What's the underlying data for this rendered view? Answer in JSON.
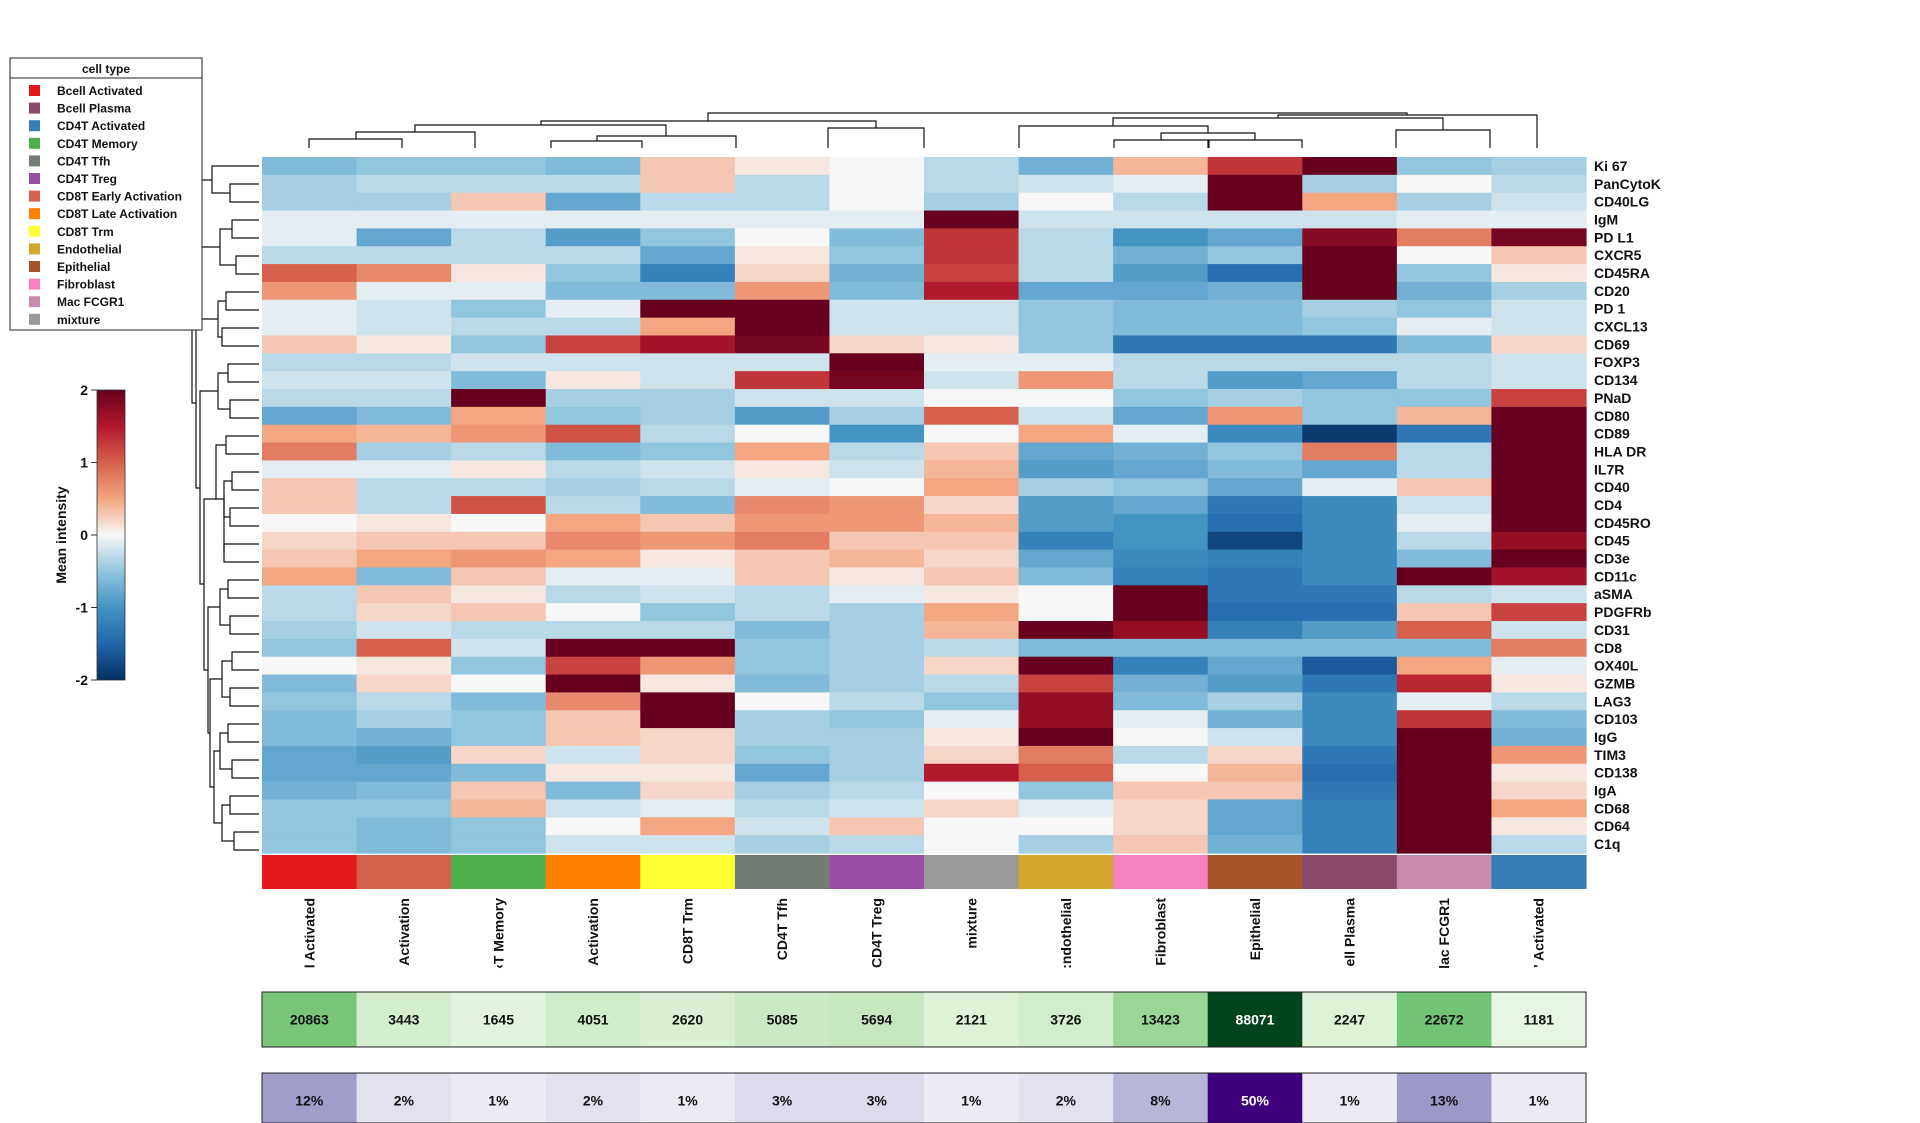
{
  "legend": {
    "title": "cell type",
    "items": [
      {
        "label": "Bcell Activated",
        "color": "#e41a1c"
      },
      {
        "label": "Bcell Plasma",
        "color": "#8c4a6a"
      },
      {
        "label": "CD4T Activated",
        "color": "#377eb8"
      },
      {
        "label": "CD4T Memory",
        "color": "#4daf4a"
      },
      {
        "label": "CD4T Tfh",
        "color": "#737d73"
      },
      {
        "label": "CD4T Treg",
        "color": "#984ea3"
      },
      {
        "label": "CD8T Early Activation",
        "color": "#d4614e"
      },
      {
        "label": "CD8T Late Activation",
        "color": "#ff7f00"
      },
      {
        "label": "CD8T Trm",
        "color": "#ffff33"
      },
      {
        "label": "Endothelial",
        "color": "#d4a72c"
      },
      {
        "label": "Epithelial",
        "color": "#a65628"
      },
      {
        "label": "Fibroblast",
        "color": "#f781bf"
      },
      {
        "label": "Mac FCGR1",
        "color": "#c98bad"
      },
      {
        "label": "mixture",
        "color": "#999999"
      }
    ]
  },
  "colorbar": {
    "label": "Mean intensity",
    "ticks": [
      "2",
      "1",
      "0",
      "-1",
      "-2"
    ],
    "range": [
      -2,
      2
    ]
  },
  "chart_data": {
    "type": "heatmap",
    "columns": [
      {
        "label": "l Activated",
        "color": "#e41a1c",
        "count": "20863",
        "count_value": 20863,
        "percent": "12%",
        "percent_value": 12
      },
      {
        "label": "Activation",
        "color": "#d4614e",
        "count": "3443",
        "count_value": 3443,
        "percent": "2%",
        "percent_value": 2
      },
      {
        "label": "‹T Memory",
        "color": "#4daf4a",
        "count": "1645",
        "count_value": 1645,
        "percent": "1%",
        "percent_value": 1
      },
      {
        "label": "Activation",
        "color": "#ff7f00",
        "count": "4051",
        "count_value": 4051,
        "percent": "2%",
        "percent_value": 2
      },
      {
        "label": "CD8T Trm",
        "color": "#ffff33",
        "count": "2620",
        "count_value": 2620,
        "percent": "1%",
        "percent_value": 1
      },
      {
        "label": "CD4T Tfh",
        "color": "#737d73",
        "count": "5085",
        "count_value": 5085,
        "percent": "3%",
        "percent_value": 3
      },
      {
        "label": "CD4T Treg",
        "color": "#984ea3",
        "count": "5694",
        "count_value": 5694,
        "percent": "3%",
        "percent_value": 3
      },
      {
        "label": "mixture",
        "color": "#999999",
        "count": "2121",
        "count_value": 2121,
        "percent": "1%",
        "percent_value": 1
      },
      {
        "label": ":ndothelial",
        "color": "#d4a72c",
        "count": "3726",
        "count_value": 3726,
        "percent": "2%",
        "percent_value": 2
      },
      {
        "label": "Fibroblast",
        "color": "#f781bf",
        "count": "13423",
        "count_value": 13423,
        "percent": "8%",
        "percent_value": 8
      },
      {
        "label": "Epithelial",
        "color": "#a65628",
        "count": "88071",
        "count_value": 88071,
        "percent": "50%",
        "percent_value": 50
      },
      {
        "label": "ell Plasma",
        "color": "#8c4a6a",
        "count": "2247",
        "count_value": 2247,
        "percent": "1%",
        "percent_value": 1
      },
      {
        "label": "lac FCGR1",
        "color": "#c98bad",
        "count": "22672",
        "count_value": 22672,
        "percent": "13%",
        "percent_value": 13
      },
      {
        "label": "' Activated",
        "color": "#377eb8",
        "count": "1181",
        "count_value": 1181,
        "percent": "1%",
        "percent_value": 1
      }
    ],
    "rows": [
      "Ki 67",
      "PanCytoK",
      "CD40LG",
      "IgM",
      "PD L1",
      "CXCR5",
      "CD45RA",
      "CD20",
      "PD 1",
      "CXCL13",
      "CD69",
      "FOXP3",
      "CD134",
      "PNaD",
      "CD80",
      "CD89",
      "HLA DR",
      "IL7R",
      "CD40",
      "CD4",
      "CD45RO",
      "CD45",
      "CD3e",
      "CD11c",
      "aSMA",
      "PDGFRb",
      "CD31",
      "CD8",
      "OX40L",
      "GZMB",
      "LAG3",
      "CD103",
      "IgG",
      "TIM3",
      "CD138",
      "IgA",
      "CD68",
      "CD64",
      "C1q"
    ],
    "values": [
      [
        -0.6,
        -0.5,
        -0.5,
        -0.6,
        0.3,
        0.1,
        0.0,
        -0.3,
        -0.7,
        0.4,
        1.3,
        2.0,
        -0.5,
        -0.4
      ],
      [
        -0.4,
        -0.3,
        -0.3,
        -0.3,
        0.3,
        -0.3,
        0.0,
        -0.3,
        -0.2,
        -0.1,
        2.0,
        -0.4,
        0.0,
        -0.3
      ],
      [
        -0.4,
        -0.4,
        0.3,
        -0.8,
        -0.3,
        -0.3,
        0.0,
        -0.4,
        0.0,
        -0.3,
        2.0,
        0.5,
        -0.4,
        -0.2
      ],
      [
        -0.1,
        -0.1,
        -0.1,
        -0.1,
        -0.1,
        -0.1,
        -0.1,
        2.0,
        -0.2,
        -0.2,
        -0.2,
        -0.2,
        -0.1,
        -0.1
      ],
      [
        -0.1,
        -0.8,
        -0.3,
        -0.9,
        -0.5,
        0.0,
        -0.6,
        1.3,
        -0.3,
        -1.0,
        -0.8,
        1.8,
        0.8,
        1.9
      ],
      [
        -0.3,
        -0.3,
        -0.3,
        -0.3,
        -0.8,
        0.1,
        -0.5,
        1.3,
        -0.3,
        -0.7,
        -0.5,
        2.0,
        0.0,
        0.3
      ],
      [
        1.0,
        0.7,
        0.1,
        -0.5,
        -1.2,
        0.2,
        -0.7,
        1.2,
        -0.3,
        -0.9,
        -1.4,
        2.0,
        -0.5,
        0.1
      ],
      [
        0.6,
        -0.1,
        -0.1,
        -0.6,
        -0.6,
        0.6,
        -0.6,
        1.5,
        -0.8,
        -0.8,
        -0.7,
        2.0,
        -0.7,
        -0.4
      ],
      [
        -0.1,
        -0.2,
        -0.5,
        -0.1,
        2.0,
        2.0,
        -0.2,
        -0.2,
        -0.5,
        -0.6,
        -0.6,
        -0.4,
        -0.5,
        -0.2
      ],
      [
        -0.1,
        -0.2,
        -0.3,
        -0.3,
        0.5,
        2.0,
        -0.2,
        -0.2,
        -0.5,
        -0.6,
        -0.6,
        -0.5,
        -0.1,
        -0.2
      ],
      [
        0.3,
        0.1,
        -0.5,
        1.2,
        1.6,
        1.9,
        0.2,
        0.1,
        -0.5,
        -1.3,
        -1.3,
        -1.3,
        -0.6,
        0.2
      ],
      [
        -0.3,
        -0.3,
        -0.2,
        -0.2,
        -0.2,
        -0.2,
        2.0,
        -0.1,
        -0.1,
        -0.3,
        -0.3,
        -0.3,
        -0.3,
        -0.2
      ],
      [
        -0.2,
        -0.2,
        -0.6,
        0.1,
        -0.2,
        1.3,
        1.9,
        -0.2,
        0.6,
        -0.3,
        -0.9,
        -0.8,
        -0.3,
        -0.2
      ],
      [
        -0.3,
        -0.3,
        2.0,
        -0.4,
        -0.4,
        -0.2,
        -0.2,
        0.0,
        0.0,
        -0.5,
        -0.4,
        -0.5,
        -0.5,
        1.2
      ],
      [
        -0.8,
        -0.6,
        0.5,
        -0.5,
        -0.4,
        -0.9,
        -0.4,
        1.0,
        -0.2,
        -0.8,
        0.6,
        -0.5,
        0.4,
        2.0
      ],
      [
        0.5,
        0.4,
        0.6,
        1.1,
        -0.3,
        0.0,
        -1.0,
        0.0,
        0.5,
        -0.1,
        -1.1,
        -1.9,
        -1.3,
        2.0
      ],
      [
        0.8,
        -0.4,
        -0.3,
        -0.6,
        -0.5,
        0.5,
        -0.3,
        0.3,
        -0.8,
        -0.7,
        -0.5,
        0.8,
        -0.3,
        2.0
      ],
      [
        -0.1,
        -0.1,
        0.1,
        -0.3,
        -0.2,
        0.1,
        -0.2,
        0.4,
        -0.9,
        -0.8,
        -0.6,
        -0.8,
        -0.3,
        2.0
      ],
      [
        0.3,
        -0.3,
        -0.3,
        -0.4,
        -0.3,
        -0.1,
        0.0,
        0.5,
        -0.4,
        -0.5,
        -0.8,
        -0.1,
        0.3,
        2.0
      ],
      [
        0.3,
        -0.3,
        1.1,
        -0.3,
        -0.6,
        0.7,
        0.6,
        0.2,
        -0.9,
        -0.8,
        -1.3,
        -1.1,
        -0.2,
        2.0
      ],
      [
        0.0,
        0.1,
        0.0,
        0.5,
        0.3,
        0.6,
        0.6,
        0.4,
        -0.9,
        -1.0,
        -1.4,
        -1.1,
        -0.1,
        2.0
      ],
      [
        0.2,
        0.3,
        0.3,
        0.7,
        0.6,
        0.8,
        0.3,
        0.3,
        -1.2,
        -1.0,
        -1.8,
        -1.1,
        -0.3,
        1.7
      ],
      [
        0.3,
        0.5,
        0.6,
        0.5,
        0.1,
        0.3,
        0.4,
        0.2,
        -0.8,
        -1.1,
        -1.2,
        -1.1,
        -0.6,
        2.0
      ],
      [
        0.5,
        -0.6,
        0.3,
        -0.1,
        -0.1,
        0.3,
        0.1,
        0.3,
        -0.6,
        -1.2,
        -1.3,
        -1.1,
        2.0,
        1.6
      ],
      [
        -0.3,
        0.3,
        0.1,
        -0.3,
        -0.2,
        -0.3,
        -0.1,
        0.1,
        0.0,
        2.0,
        -1.3,
        -1.3,
        -0.3,
        -0.2
      ],
      [
        -0.3,
        0.2,
        0.3,
        0.0,
        -0.5,
        -0.3,
        -0.4,
        0.5,
        0.0,
        2.0,
        -1.4,
        -1.4,
        0.3,
        1.2
      ],
      [
        -0.4,
        -0.2,
        -0.3,
        -0.3,
        -0.3,
        -0.6,
        -0.4,
        0.4,
        2.0,
        1.7,
        -1.2,
        -0.9,
        1.0,
        -0.2
      ],
      [
        -0.5,
        1.0,
        -0.2,
        2.0,
        2.0,
        -0.5,
        -0.4,
        -0.3,
        -0.6,
        -0.6,
        -0.6,
        -0.6,
        -0.6,
        0.8
      ],
      [
        0.0,
        0.1,
        -0.5,
        1.2,
        0.6,
        -0.5,
        -0.4,
        0.2,
        2.0,
        -1.2,
        -0.8,
        -1.6,
        0.5,
        -0.1
      ],
      [
        -0.6,
        0.2,
        0.0,
        2.0,
        0.1,
        -0.6,
        -0.4,
        -0.3,
        1.2,
        -0.7,
        -0.9,
        -1.3,
        1.4,
        0.1
      ],
      [
        -0.5,
        -0.3,
        -0.6,
        0.7,
        2.0,
        0.0,
        -0.3,
        -0.5,
        1.7,
        -0.6,
        -0.4,
        -1.1,
        -0.1,
        -0.3
      ],
      [
        -0.6,
        -0.4,
        -0.5,
        0.3,
        2.0,
        -0.4,
        -0.5,
        -0.1,
        1.7,
        -0.1,
        -0.7,
        -1.1,
        1.3,
        -0.6
      ],
      [
        -0.6,
        -0.7,
        -0.5,
        0.3,
        0.2,
        -0.4,
        -0.4,
        0.1,
        2.0,
        0.0,
        -0.2,
        -1.1,
        2.0,
        -0.7
      ],
      [
        -0.8,
        -0.9,
        0.2,
        -0.2,
        0.2,
        -0.5,
        -0.4,
        0.2,
        0.8,
        -0.3,
        0.2,
        -1.3,
        2.0,
        0.6
      ],
      [
        -0.8,
        -0.8,
        -0.6,
        0.1,
        0.1,
        -0.8,
        -0.4,
        1.5,
        1.0,
        0.0,
        0.4,
        -1.4,
        2.0,
        0.1
      ],
      [
        -0.7,
        -0.6,
        0.3,
        -0.6,
        0.2,
        -0.4,
        -0.3,
        0.0,
        -0.5,
        0.3,
        0.3,
        -1.3,
        2.0,
        0.2
      ],
      [
        -0.5,
        -0.5,
        0.4,
        -0.2,
        -0.1,
        -0.3,
        -0.2,
        0.2,
        -0.1,
        0.2,
        -0.8,
        -1.2,
        2.0,
        0.5
      ],
      [
        -0.5,
        -0.6,
        -0.5,
        0.0,
        0.5,
        -0.2,
        0.3,
        0.0,
        0.0,
        0.2,
        -0.8,
        -1.2,
        2.0,
        0.1
      ],
      [
        -0.5,
        -0.6,
        -0.5,
        -0.2,
        -0.2,
        -0.4,
        -0.3,
        0.0,
        -0.4,
        0.3,
        -0.7,
        -1.2,
        2.0,
        -0.3
      ]
    ]
  }
}
